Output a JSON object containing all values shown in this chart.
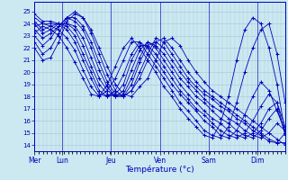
{
  "title": "Température (°c)",
  "background_color": "#cce8f0",
  "grid_color": "#aaccdd",
  "line_color": "#0000bb",
  "marker": "+",
  "yticks": [
    14,
    15,
    16,
    17,
    18,
    19,
    20,
    21,
    22,
    23,
    24,
    25
  ],
  "ylim": [
    13.5,
    25.8
  ],
  "day_labels": [
    "Mer",
    "Lun",
    "Jeu",
    "Ven",
    "Sam",
    "Dim"
  ],
  "day_positions": [
    0.0,
    0.167,
    0.458,
    0.75,
    1.042,
    1.333
  ],
  "xlim": [
    0.0,
    1.5
  ],
  "series": [
    [
      22.0,
      21.0,
      21.2,
      22.5,
      24.2,
      24.8,
      24.5,
      23.5,
      22.0,
      20.5,
      19.0,
      18.2,
      18.0,
      18.8,
      19.5,
      21.0,
      22.5,
      22.8,
      22.2,
      21.0,
      20.0,
      19.2,
      18.5,
      18.0,
      17.5,
      17.0,
      16.5,
      16.0,
      15.5,
      15.0,
      14.5,
      14.0
    ],
    [
      22.5,
      21.5,
      22.0,
      23.2,
      24.5,
      25.0,
      24.5,
      23.2,
      21.5,
      19.8,
      18.5,
      18.0,
      18.5,
      19.5,
      21.0,
      22.5,
      22.8,
      22.0,
      21.0,
      20.0,
      19.2,
      18.5,
      18.0,
      17.5,
      17.0,
      16.5,
      16.0,
      15.5,
      15.0,
      14.5,
      14.2,
      14.2
    ],
    [
      23.0,
      22.2,
      22.8,
      23.8,
      24.5,
      24.5,
      23.8,
      22.5,
      20.8,
      19.2,
      18.2,
      18.0,
      18.5,
      20.0,
      21.5,
      22.8,
      22.5,
      21.5,
      20.5,
      19.5,
      18.8,
      18.2,
      17.8,
      17.2,
      16.8,
      16.2,
      15.8,
      15.2,
      14.8,
      14.3,
      14.2,
      15.0
    ],
    [
      23.5,
      22.8,
      23.2,
      23.8,
      24.5,
      24.2,
      23.5,
      22.0,
      20.2,
      18.8,
      18.0,
      18.0,
      19.0,
      20.8,
      22.2,
      22.5,
      22.0,
      21.0,
      20.0,
      19.2,
      18.5,
      17.8,
      17.2,
      16.8,
      16.2,
      15.8,
      15.2,
      14.8,
      14.6,
      15.0,
      15.8,
      15.2
    ],
    [
      24.0,
      23.2,
      23.5,
      24.0,
      24.0,
      23.8,
      22.8,
      21.2,
      19.5,
      18.5,
      18.0,
      18.2,
      19.5,
      21.2,
      22.5,
      22.2,
      21.5,
      20.5,
      19.5,
      18.8,
      18.0,
      17.5,
      16.8,
      16.2,
      15.8,
      15.2,
      14.8,
      14.6,
      15.2,
      16.2,
      17.0,
      15.0
    ],
    [
      24.2,
      23.5,
      23.8,
      24.0,
      24.0,
      23.5,
      22.2,
      20.5,
      19.0,
      18.2,
      18.0,
      18.5,
      20.2,
      21.8,
      22.5,
      22.0,
      21.0,
      20.0,
      19.0,
      18.2,
      17.5,
      16.8,
      16.2,
      15.8,
      15.2,
      14.8,
      14.6,
      15.0,
      15.8,
      17.0,
      17.5,
      14.8
    ],
    [
      24.5,
      24.0,
      24.0,
      24.0,
      23.8,
      23.0,
      21.5,
      20.0,
      18.5,
      18.0,
      18.2,
      19.0,
      21.0,
      22.2,
      22.2,
      21.5,
      20.5,
      19.5,
      18.5,
      17.8,
      17.0,
      16.5,
      15.8,
      15.2,
      14.8,
      14.6,
      15.0,
      16.0,
      17.2,
      18.2,
      17.5,
      15.5
    ],
    [
      24.8,
      24.2,
      24.2,
      24.0,
      23.5,
      22.5,
      21.0,
      19.5,
      18.2,
      18.0,
      18.5,
      19.8,
      21.5,
      22.5,
      22.0,
      21.0,
      20.0,
      19.0,
      18.2,
      17.5,
      16.8,
      16.0,
      15.5,
      14.8,
      14.6,
      15.2,
      16.5,
      18.0,
      19.2,
      18.5,
      16.8,
      15.2
    ],
    [
      23.8,
      24.0,
      23.8,
      23.5,
      22.8,
      21.8,
      20.2,
      18.8,
      18.0,
      18.5,
      19.5,
      21.0,
      22.5,
      22.5,
      21.5,
      20.5,
      19.5,
      18.5,
      17.5,
      16.8,
      16.0,
      15.2,
      14.8,
      14.6,
      15.5,
      17.5,
      20.0,
      22.0,
      23.5,
      24.0,
      21.5,
      17.5
    ],
    [
      23.2,
      23.8,
      23.5,
      23.0,
      22.0,
      20.8,
      19.5,
      18.2,
      18.0,
      19.0,
      20.5,
      22.0,
      22.8,
      22.0,
      21.0,
      20.0,
      18.8,
      18.0,
      17.0,
      16.2,
      15.5,
      14.8,
      14.6,
      15.8,
      18.0,
      21.0,
      23.5,
      24.5,
      24.0,
      22.0,
      19.0,
      15.0
    ]
  ]
}
